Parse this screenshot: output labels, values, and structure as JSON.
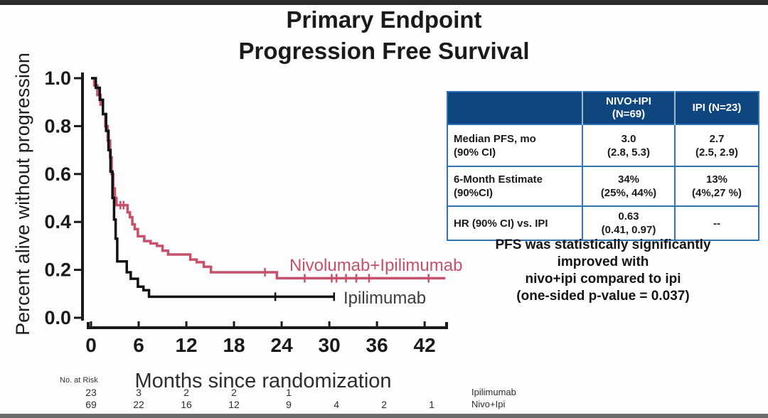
{
  "page": {
    "background": "#fdfdfd",
    "top_bar_color": "#2c2c2c",
    "bottom_bar_color": "#6a6a6a"
  },
  "title": {
    "line1": "Primary Endpoint",
    "line2": "Progression Free Survival"
  },
  "stats_table": {
    "header_bg": "#0f4680",
    "border_color": "#2e75b6",
    "columns": {
      "nivo_line1": "NIVO+IPI",
      "nivo_line2": "(N=69)",
      "ipi": "IPI (N=23)"
    },
    "rows": [
      {
        "label_line1": "Median PFS, mo",
        "label_line2": "(90% CI)",
        "nivo_line1": "3.0",
        "nivo_line2": "(2.8, 5.3)",
        "ipi_line1": "2.7",
        "ipi_line2": "(2.5, 2.9)"
      },
      {
        "label_line1": "6-Month Estimate",
        "label_line2": "(90%CI)",
        "nivo_line1": "34%",
        "nivo_line2": "(25%, 44%)",
        "ipi_line1": "13%",
        "ipi_line2": "(4%,27 %)"
      },
      {
        "label_line1": "HR (90% CI) vs. IPI",
        "label_line2": "",
        "nivo_line1": "0.63",
        "nivo_line2": "(0.41, 0.97)",
        "ipi_line1": "--",
        "ipi_line2": ""
      }
    ]
  },
  "note": {
    "line1": "PFS was statistically significantly",
    "line2": "improved with",
    "line3": "nivo+ipi compared to ipi",
    "line4": "(one-sided p-value = 0.037)"
  },
  "chart_data": {
    "type": "line",
    "subtype": "kaplan_meier_step",
    "title": "Primary Endpoint Progression Free Survival",
    "xlabel": "Months since randomization",
    "ylabel": "Percent alive without progression",
    "xlim": [
      0,
      45
    ],
    "ylim": [
      0,
      1.0
    ],
    "xticks": [
      0,
      6,
      12,
      18,
      24,
      30,
      36,
      42
    ],
    "yticks": [
      0.0,
      0.2,
      0.4,
      0.6,
      0.8,
      1.0
    ],
    "grid": false,
    "legend_position": "inline-right-of-curves",
    "axis_color": "#1a1a1a",
    "series": [
      {
        "name": "Nivolumab+Ipilimumab",
        "color": "#c7516b",
        "median_pfs_months": 3.0,
        "six_month_estimate": 0.34,
        "steps": [
          [
            0,
            1.0
          ],
          [
            0.4,
            0.97
          ],
          [
            0.8,
            0.93
          ],
          [
            1.2,
            0.89
          ],
          [
            1.5,
            0.85
          ],
          [
            1.8,
            0.8
          ],
          [
            2.1,
            0.74
          ],
          [
            2.4,
            0.67
          ],
          [
            2.6,
            0.6
          ],
          [
            2.8,
            0.54
          ],
          [
            3.0,
            0.5
          ],
          [
            3.2,
            0.47
          ],
          [
            4.6,
            0.44
          ],
          [
            4.9,
            0.42
          ],
          [
            5.2,
            0.39
          ],
          [
            5.5,
            0.37
          ],
          [
            5.9,
            0.34
          ],
          [
            6.7,
            0.32
          ],
          [
            7.5,
            0.31
          ],
          [
            8.3,
            0.3
          ],
          [
            9.0,
            0.28
          ],
          [
            9.7,
            0.264
          ],
          [
            12.5,
            0.243
          ],
          [
            13.3,
            0.232
          ],
          [
            14.2,
            0.213
          ],
          [
            15.1,
            0.19
          ],
          [
            23.4,
            0.165
          ]
        ],
        "end_month": 44.6,
        "censors": [
          [
            3.7,
            0.47
          ],
          [
            4.1,
            0.47
          ],
          [
            21.9,
            0.19
          ],
          [
            26.9,
            0.165
          ],
          [
            30.3,
            0.165
          ],
          [
            30.9,
            0.165
          ],
          [
            32.1,
            0.165
          ],
          [
            33.4,
            0.165
          ],
          [
            35.0,
            0.165
          ],
          [
            42.5,
            0.165
          ]
        ]
      },
      {
        "name": "Ipilimumab",
        "color": "#121212",
        "median_pfs_months": 2.7,
        "six_month_estimate": 0.13,
        "steps": [
          [
            0,
            1.0
          ],
          [
            0.6,
            0.96
          ],
          [
            1.1,
            0.91
          ],
          [
            1.5,
            0.85
          ],
          [
            1.9,
            0.78
          ],
          [
            2.2,
            0.7
          ],
          [
            2.45,
            0.61
          ],
          [
            2.7,
            0.5
          ],
          [
            2.9,
            0.41
          ],
          [
            3.1,
            0.33
          ],
          [
            3.3,
            0.235
          ],
          [
            4.5,
            0.19
          ],
          [
            5.0,
            0.163
          ],
          [
            5.9,
            0.13
          ],
          [
            6.6,
            0.115
          ],
          [
            7.3,
            0.088
          ]
        ],
        "end_month": 30.6,
        "censors": [
          [
            23.2,
            0.088
          ],
          [
            30.6,
            0.088
          ]
        ]
      }
    ],
    "at_risk": {
      "label": "No. at Risk",
      "times": [
        0,
        6,
        12,
        18,
        24,
        30,
        36,
        42
      ],
      "rows": [
        {
          "name": "Ipilimumab",
          "counts": [
            "23",
            "3",
            "2",
            "2",
            "1",
            "",
            "",
            ""
          ]
        },
        {
          "name": "Nivo+Ipi",
          "counts": [
            "69",
            "22",
            "16",
            "12",
            "9",
            "4",
            "2",
            "1"
          ]
        }
      ]
    }
  }
}
